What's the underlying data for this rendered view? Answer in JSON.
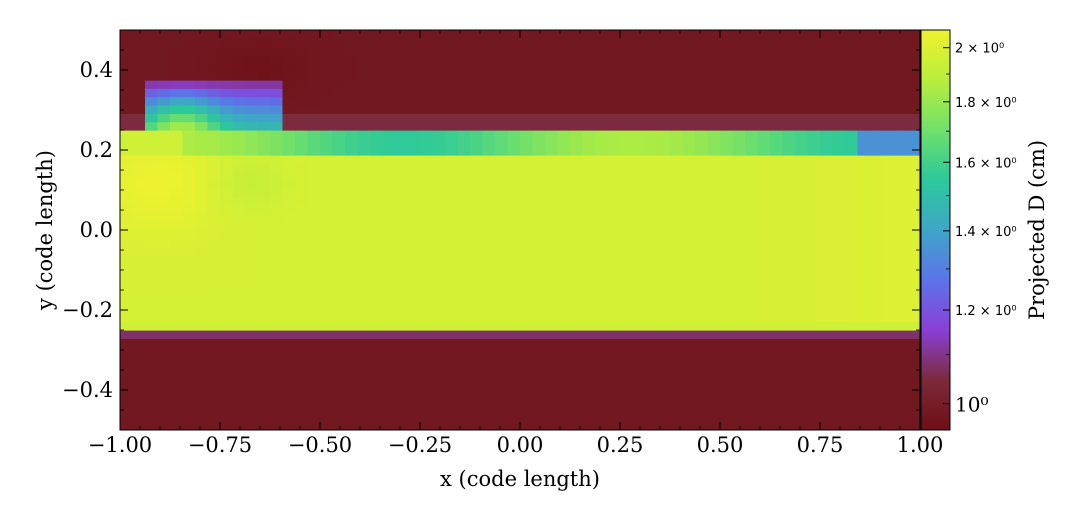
{
  "chart_data": {
    "type": "heatmap",
    "title": "",
    "xlabel": "x  (code length)",
    "ylabel": "y  (code length)",
    "xlim": [
      -1.0,
      1.0
    ],
    "ylim": [
      -0.5,
      0.5
    ],
    "xticks": [
      -1.0,
      -0.75,
      -0.5,
      -0.25,
      0.0,
      0.25,
      0.5,
      0.75,
      1.0
    ],
    "xtick_labels": [
      "−1.00",
      "−0.75",
      "−0.50",
      "−0.25",
      "0.00",
      "0.25",
      "0.50",
      "0.75",
      "1.00"
    ],
    "yticks": [
      -0.4,
      -0.2,
      0.0,
      0.2,
      0.4
    ],
    "ytick_labels": [
      "−0.4",
      "−0.2",
      "0.0",
      "0.2",
      "0.4"
    ],
    "grid": false,
    "colorbar": {
      "label": "Projected D  (cm)",
      "scale": "log",
      "range": [
        0.95,
        2.07
      ],
      "ticks": [
        1.0,
        1.2,
        1.4,
        1.6,
        1.8,
        2.0
      ],
      "tick_labels": [
        "10⁰",
        "1.2 × 10⁰",
        "1.4 × 10⁰",
        "1.6 × 10⁰",
        "1.8 × 10⁰",
        "2 × 10⁰"
      ],
      "colormap_stops": [
        "#6e0f14",
        "#7c2a3a",
        "#8a3fd6",
        "#5b74ea",
        "#3fa6c8",
        "#2cc99a",
        "#6fe06a",
        "#b8ee3c",
        "#f0f22e"
      ]
    },
    "regions": [
      {
        "desc": "background",
        "value": 0.98
      },
      {
        "desc": "slab core",
        "x": [
          -1.0,
          1.0
        ],
        "y": [
          -0.22,
          0.19
        ],
        "value": 1.98
      },
      {
        "desc": "slab upper skin",
        "x": [
          -1.0,
          1.0
        ],
        "y": [
          0.19,
          0.25
        ],
        "value": 1.7
      },
      {
        "desc": "slab lower skin",
        "x": [
          -1.0,
          1.0
        ],
        "y": [
          -0.25,
          -0.22
        ],
        "value": 1.95
      },
      {
        "desc": "rising plume",
        "x": [
          -0.95,
          -0.6
        ],
        "y": [
          0.25,
          0.37
        ],
        "value": 1.5
      }
    ]
  }
}
